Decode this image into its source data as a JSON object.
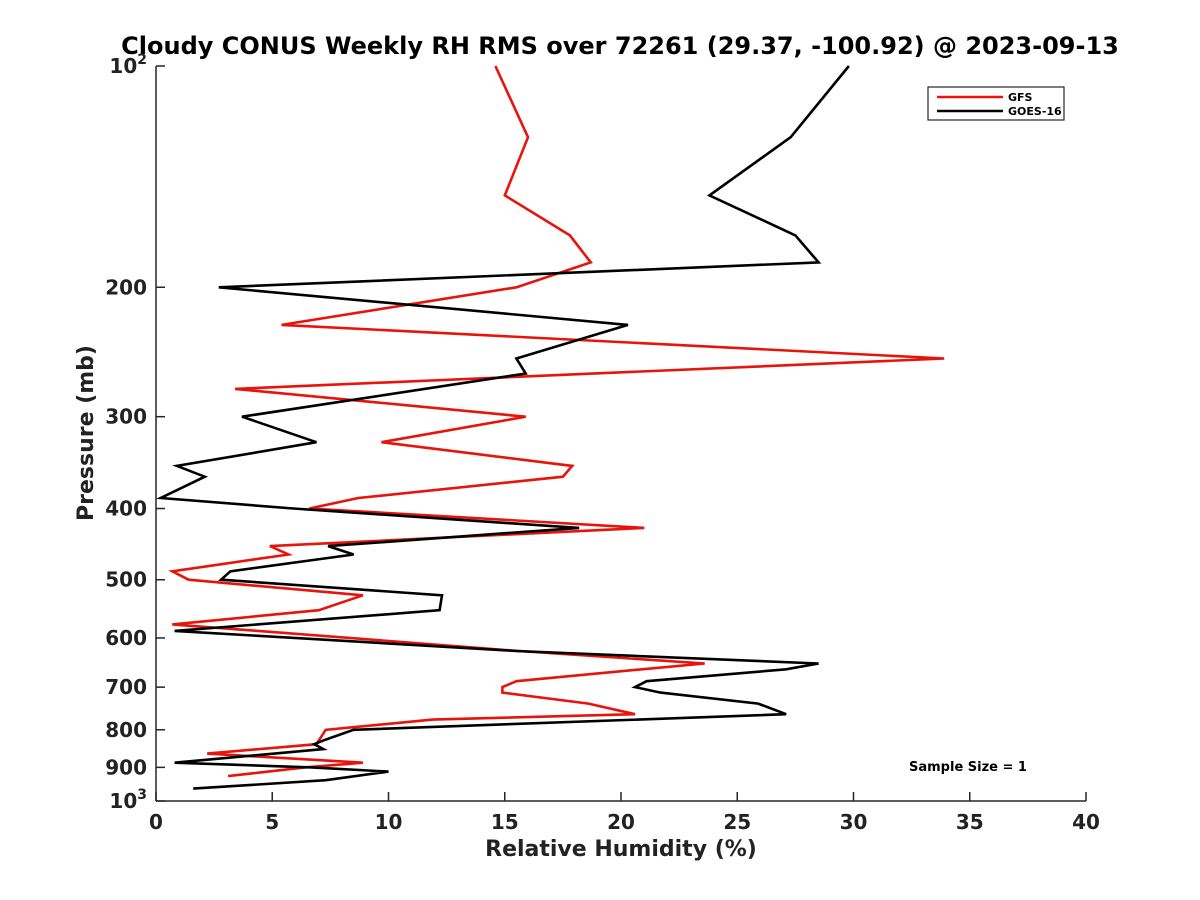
{
  "chart_data": {
    "type": "line",
    "title": "Cloudy CONUS Weekly RH RMS over 72261 (29.37, -100.92) @ 2023-09-13",
    "xlabel": "Relative Humidity (%)",
    "ylabel": "Pressure (mb)",
    "xlim": [
      0,
      40
    ],
    "ylim": [
      100,
      1000
    ],
    "y_scale": "log",
    "y_reversed": true,
    "x_ticks": [
      "0",
      "5",
      "10",
      "15",
      "20",
      "25",
      "30",
      "35",
      "40"
    ],
    "y_ticks": [
      {
        "value": 100,
        "base": "10",
        "exp": "2"
      },
      {
        "value": 200,
        "label": "200"
      },
      {
        "value": 300,
        "label": "300"
      },
      {
        "value": 400,
        "label": "400"
      },
      {
        "value": 500,
        "label": "500"
      },
      {
        "value": 600,
        "label": "600"
      },
      {
        "value": 700,
        "label": "700"
      },
      {
        "value": 800,
        "label": "800"
      },
      {
        "value": 900,
        "label": "900"
      },
      {
        "value": 1000,
        "base": "10",
        "exp": "3"
      }
    ],
    "legend_position": "top-right",
    "series": [
      {
        "name": "GFS",
        "color": "#e8140c",
        "points": [
          [
            14.6,
            100
          ],
          [
            16.0,
            125
          ],
          [
            15.0,
            150
          ],
          [
            17.8,
            170
          ],
          [
            18.7,
            185
          ],
          [
            15.5,
            200
          ],
          [
            5.4,
            225
          ],
          [
            33.9,
            250
          ],
          [
            3.4,
            275
          ],
          [
            15.9,
            300
          ],
          [
            9.7,
            325
          ],
          [
            17.9,
            350
          ],
          [
            17.5,
            362
          ],
          [
            8.7,
            387
          ],
          [
            6.6,
            400
          ],
          [
            21.0,
            425
          ],
          [
            4.9,
            450
          ],
          [
            5.7,
            462
          ],
          [
            0.7,
            487
          ],
          [
            1.4,
            500
          ],
          [
            8.9,
            525
          ],
          [
            7.0,
            550
          ],
          [
            0.7,
            575
          ],
          [
            4.4,
            587
          ],
          [
            15.6,
            625
          ],
          [
            23.6,
            650
          ],
          [
            20.9,
            662
          ],
          [
            15.5,
            687
          ],
          [
            14.9,
            700
          ],
          [
            14.9,
            712
          ],
          [
            18.6,
            737
          ],
          [
            20.6,
            762
          ],
          [
            11.9,
            775
          ],
          [
            7.3,
            800
          ],
          [
            6.9,
            837
          ],
          [
            2.2,
            862
          ],
          [
            8.9,
            887
          ],
          [
            6.4,
            900
          ],
          [
            3.1,
            925
          ]
        ]
      },
      {
        "name": "GOES-16",
        "color": "#000000",
        "points": [
          [
            29.8,
            100
          ],
          [
            27.3,
            125
          ],
          [
            23.8,
            150
          ],
          [
            27.5,
            170
          ],
          [
            28.5,
            185
          ],
          [
            2.7,
            200
          ],
          [
            20.3,
            225
          ],
          [
            15.5,
            250
          ],
          [
            15.9,
            262
          ],
          [
            3.7,
            300
          ],
          [
            6.9,
            325
          ],
          [
            0.9,
            350
          ],
          [
            2.1,
            362
          ],
          [
            0.2,
            387
          ],
          [
            5.9,
            400
          ],
          [
            18.2,
            425
          ],
          [
            7.4,
            450
          ],
          [
            8.5,
            462
          ],
          [
            3.2,
            487
          ],
          [
            2.8,
            500
          ],
          [
            12.3,
            525
          ],
          [
            12.2,
            550
          ],
          [
            0.8,
            587
          ],
          [
            15.5,
            625
          ],
          [
            28.5,
            650
          ],
          [
            27.1,
            662
          ],
          [
            21.1,
            687
          ],
          [
            20.6,
            700
          ],
          [
            21.7,
            712
          ],
          [
            25.9,
            737
          ],
          [
            27.1,
            762
          ],
          [
            8.5,
            800
          ],
          [
            7.3,
            825
          ],
          [
            6.8,
            837
          ],
          [
            7.2,
            850
          ],
          [
            0.8,
            887
          ],
          [
            6.7,
            900
          ],
          [
            10.0,
            912
          ],
          [
            7.3,
            937
          ],
          [
            1.6,
            962
          ]
        ]
      }
    ],
    "annotations": [
      "Sample Size = 1"
    ]
  }
}
